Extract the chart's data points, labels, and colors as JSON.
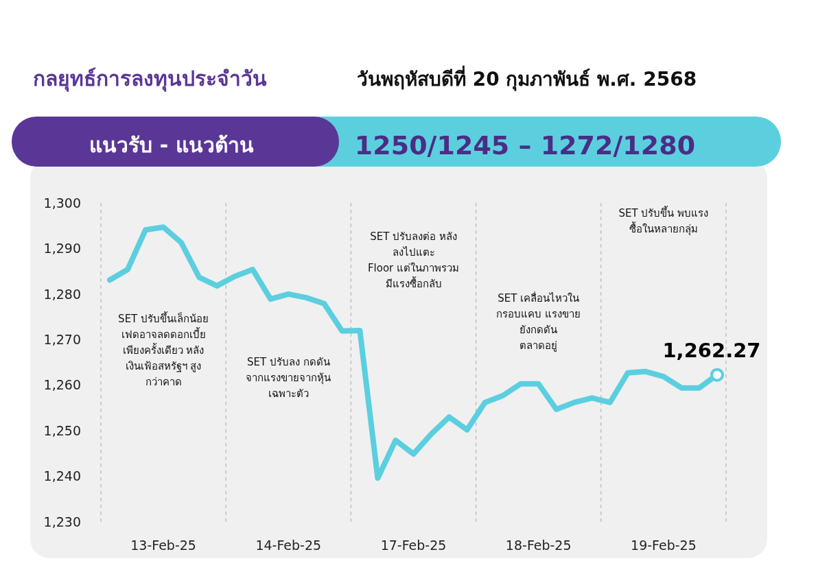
{
  "chart_data": {
    "type": "line",
    "title": "กลยุทธ์การลงทุนประจำวัน",
    "subtitle": "วันพฤหัสบดีที่ 20 กุมภาพันธ์ พ.ศ. 2568",
    "categories": [
      null,
      null,
      null,
      "13-Feb-25",
      null,
      null,
      null,
      null,
      null,
      null,
      "14-Feb-25",
      null,
      null,
      null,
      null,
      null,
      null,
      "17-Feb-25",
      null,
      null,
      null,
      null,
      null,
      null,
      "18-Feb-25",
      null,
      null,
      null,
      null,
      null,
      null,
      "19-Feb-25",
      null,
      null,
      null
    ],
    "series": [
      {
        "color": "#5bcfdf",
        "values": [
          1283.1,
          1285.4,
          1294.1,
          1294.7,
          1291.3,
          1283.7,
          1281.8,
          1283.9,
          1285.4,
          1278.9,
          1280.0,
          1279.2,
          1277.9,
          1271.9,
          1272.0,
          1239.6,
          1247.9,
          1244.9,
          1249.3,
          1253.0,
          1250.2,
          1256.2,
          1257.7,
          1260.3,
          1260.3,
          1254.7,
          1256.2,
          1257.2,
          1256.2,
          1262.7,
          1263.0,
          1261.9,
          1259.4,
          1259.4,
          1262.3
        ]
      }
    ],
    "ylim": [
      1230,
      1300
    ],
    "yticks": [
      {
        "value": 1230,
        "label": "1,230"
      },
      {
        "value": 1240,
        "label": "1,240"
      },
      {
        "value": 1250,
        "label": "1,250"
      },
      {
        "value": 1260,
        "label": "1,260"
      },
      {
        "value": 1270,
        "label": "1,270"
      },
      {
        "value": 1280,
        "label": "1,280"
      },
      {
        "value": 1290,
        "label": "1,290"
      },
      {
        "value": 1300,
        "label": "1,300"
      }
    ],
    "annotations": [
      "แนวรับ - แนวต้าน",
      "1250/1245 – 1272/1280",
      "SET ปรับขึ้นเล็กน้อย\nเฟดอาจลดดอกเบี้ย\nเพียงครั้งเดียว หลัง\nเงินเฟ้อสหรัฐฯ สูง\nกว่าคาด",
      "SET ปรับลง กดดัน\nจากแรงขายจากหุ้น\nเฉพาะตัว",
      "SET ปรับลงต่อ หลัง\nลงไปแตะ\nFloor แต่ในภาพรวม\nมีแรงซื้อกลับ",
      "SET เคลื่อนไหวใน\nกรอบแคบ แรงขาย\nยังกดดัน\nตลาดอยู่",
      "SET ปรับขึ้น พบแรง\nซื้อในหลายกลุ่ม",
      {
        "text": "1,262.27",
        "y": 1262.27
      }
    ],
    "grid": false,
    "marker": "none",
    "line_style": "solid"
  }
}
